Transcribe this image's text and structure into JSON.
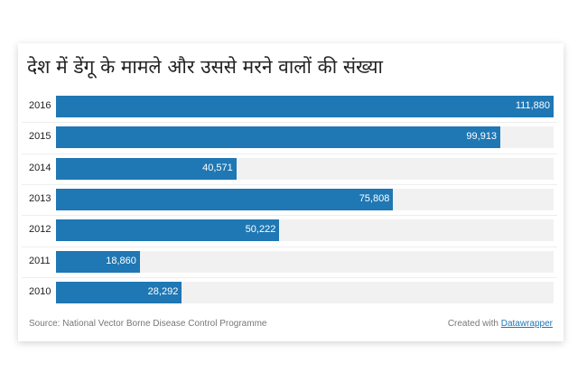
{
  "chart_data": {
    "type": "bar",
    "orientation": "horizontal",
    "title": "देश में डेंगू के मामले और उससे मरने वालों की संख्या",
    "categories": [
      "2016",
      "2015",
      "2014",
      "2013",
      "2012",
      "2011",
      "2010"
    ],
    "values": [
      111880,
      99913,
      40571,
      75808,
      50222,
      18860,
      28292
    ],
    "value_labels": [
      "111,880",
      "99,913",
      "40,571",
      "75,808",
      "50,222",
      "18,860",
      "28,292"
    ],
    "xlim": [
      0,
      111880
    ],
    "bar_color": "#1f77b4",
    "background_bar_color": "#f1f1f1",
    "grid": false
  },
  "footer": {
    "source": "Source: National Vector Borne Disease Control Programme",
    "credit_prefix": "Created with ",
    "credit_link": "Datawrapper"
  }
}
